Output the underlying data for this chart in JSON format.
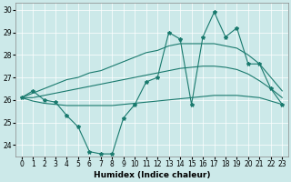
{
  "xlabel": "Humidex (Indice chaleur)",
  "bg_color": "#cce9e9",
  "line_color": "#1a7a6e",
  "grid_color": "#ffffff",
  "x": [
    0,
    1,
    2,
    3,
    4,
    5,
    6,
    7,
    8,
    9,
    10,
    11,
    12,
    13,
    14,
    15,
    16,
    17,
    18,
    19,
    20,
    21,
    22,
    23
  ],
  "line_jagged": [
    26.1,
    26.4,
    26.0,
    25.9,
    25.3,
    24.8,
    23.7,
    23.6,
    23.6,
    25.2,
    25.8,
    26.8,
    27.0,
    29.0,
    28.7,
    25.8,
    28.8,
    29.9,
    28.8,
    29.2,
    27.6,
    27.6,
    26.5,
    25.8
  ],
  "line_upper": [
    26.1,
    26.3,
    26.5,
    26.7,
    26.9,
    27.0,
    27.2,
    27.3,
    27.5,
    27.7,
    27.9,
    28.1,
    28.2,
    28.4,
    28.5,
    28.5,
    28.5,
    28.5,
    28.4,
    28.3,
    28.0,
    27.6,
    27.0,
    26.4
  ],
  "line_mid": [
    26.1,
    26.1,
    26.2,
    26.3,
    26.4,
    26.5,
    26.6,
    26.7,
    26.8,
    26.9,
    27.0,
    27.1,
    27.2,
    27.3,
    27.4,
    27.45,
    27.5,
    27.5,
    27.45,
    27.35,
    27.15,
    26.85,
    26.5,
    26.1
  ],
  "line_lower": [
    26.1,
    25.95,
    25.85,
    25.8,
    25.75,
    25.75,
    25.75,
    25.75,
    25.75,
    25.8,
    25.85,
    25.9,
    25.95,
    26.0,
    26.05,
    26.1,
    26.15,
    26.2,
    26.2,
    26.2,
    26.15,
    26.1,
    25.95,
    25.8
  ],
  "ylim": [
    23.5,
    30.3
  ],
  "xlim": [
    -0.5,
    23.5
  ],
  "yticks": [
    24,
    25,
    26,
    27,
    28,
    29,
    30
  ],
  "xticks": [
    0,
    1,
    2,
    3,
    4,
    5,
    6,
    7,
    8,
    9,
    10,
    11,
    12,
    13,
    14,
    15,
    16,
    17,
    18,
    19,
    20,
    21,
    22,
    23
  ],
  "tick_fontsize": 5.5,
  "xlabel_fontsize": 6.5
}
